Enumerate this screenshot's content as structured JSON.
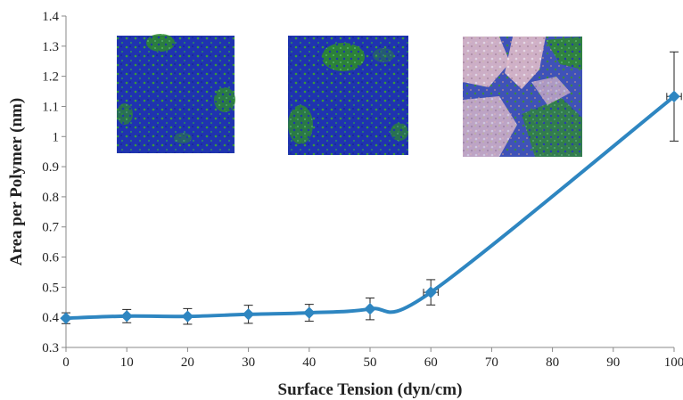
{
  "chart_data": {
    "type": "line",
    "title": "",
    "xlabel": "Surface Tension (dyn/cm)",
    "ylabel": "Area per Polymer (nm)",
    "xlim": [
      0,
      100
    ],
    "ylim": [
      0.3,
      1.4
    ],
    "x_ticks": [
      0,
      10,
      20,
      30,
      40,
      50,
      60,
      70,
      80,
      90,
      100
    ],
    "y_ticks": [
      0.3,
      0.4,
      0.5,
      0.6,
      0.7,
      0.8,
      0.9,
      1,
      1.1,
      1.2,
      1.3,
      1.4
    ],
    "grid": false,
    "legend": "none",
    "series": [
      {
        "color": "#2e86c1",
        "x": [
          0,
          10,
          20,
          30,
          40,
          50,
          60,
          100
        ],
        "y": [
          0.397,
          0.404,
          0.403,
          0.41,
          0.415,
          0.428,
          0.483,
          1.133
        ],
        "y_err": [
          0.018,
          0.022,
          0.026,
          0.03,
          0.028,
          0.036,
          0.042,
          0.148
        ],
        "x_err": [
          0,
          0,
          0,
          0,
          0,
          0,
          1.2,
          1.2
        ]
      }
    ],
    "insets": [
      {
        "name": "simulation-snapshot-1",
        "palette": [
          "#1a2fa8",
          "#2f8f2f"
        ]
      },
      {
        "name": "simulation-snapshot-2",
        "palette": [
          "#1a2fa8",
          "#2f8f2f"
        ]
      },
      {
        "name": "simulation-snapshot-3",
        "palette": [
          "#2a3fb0",
          "#3a8a3a",
          "#d8b4c0"
        ]
      }
    ]
  }
}
